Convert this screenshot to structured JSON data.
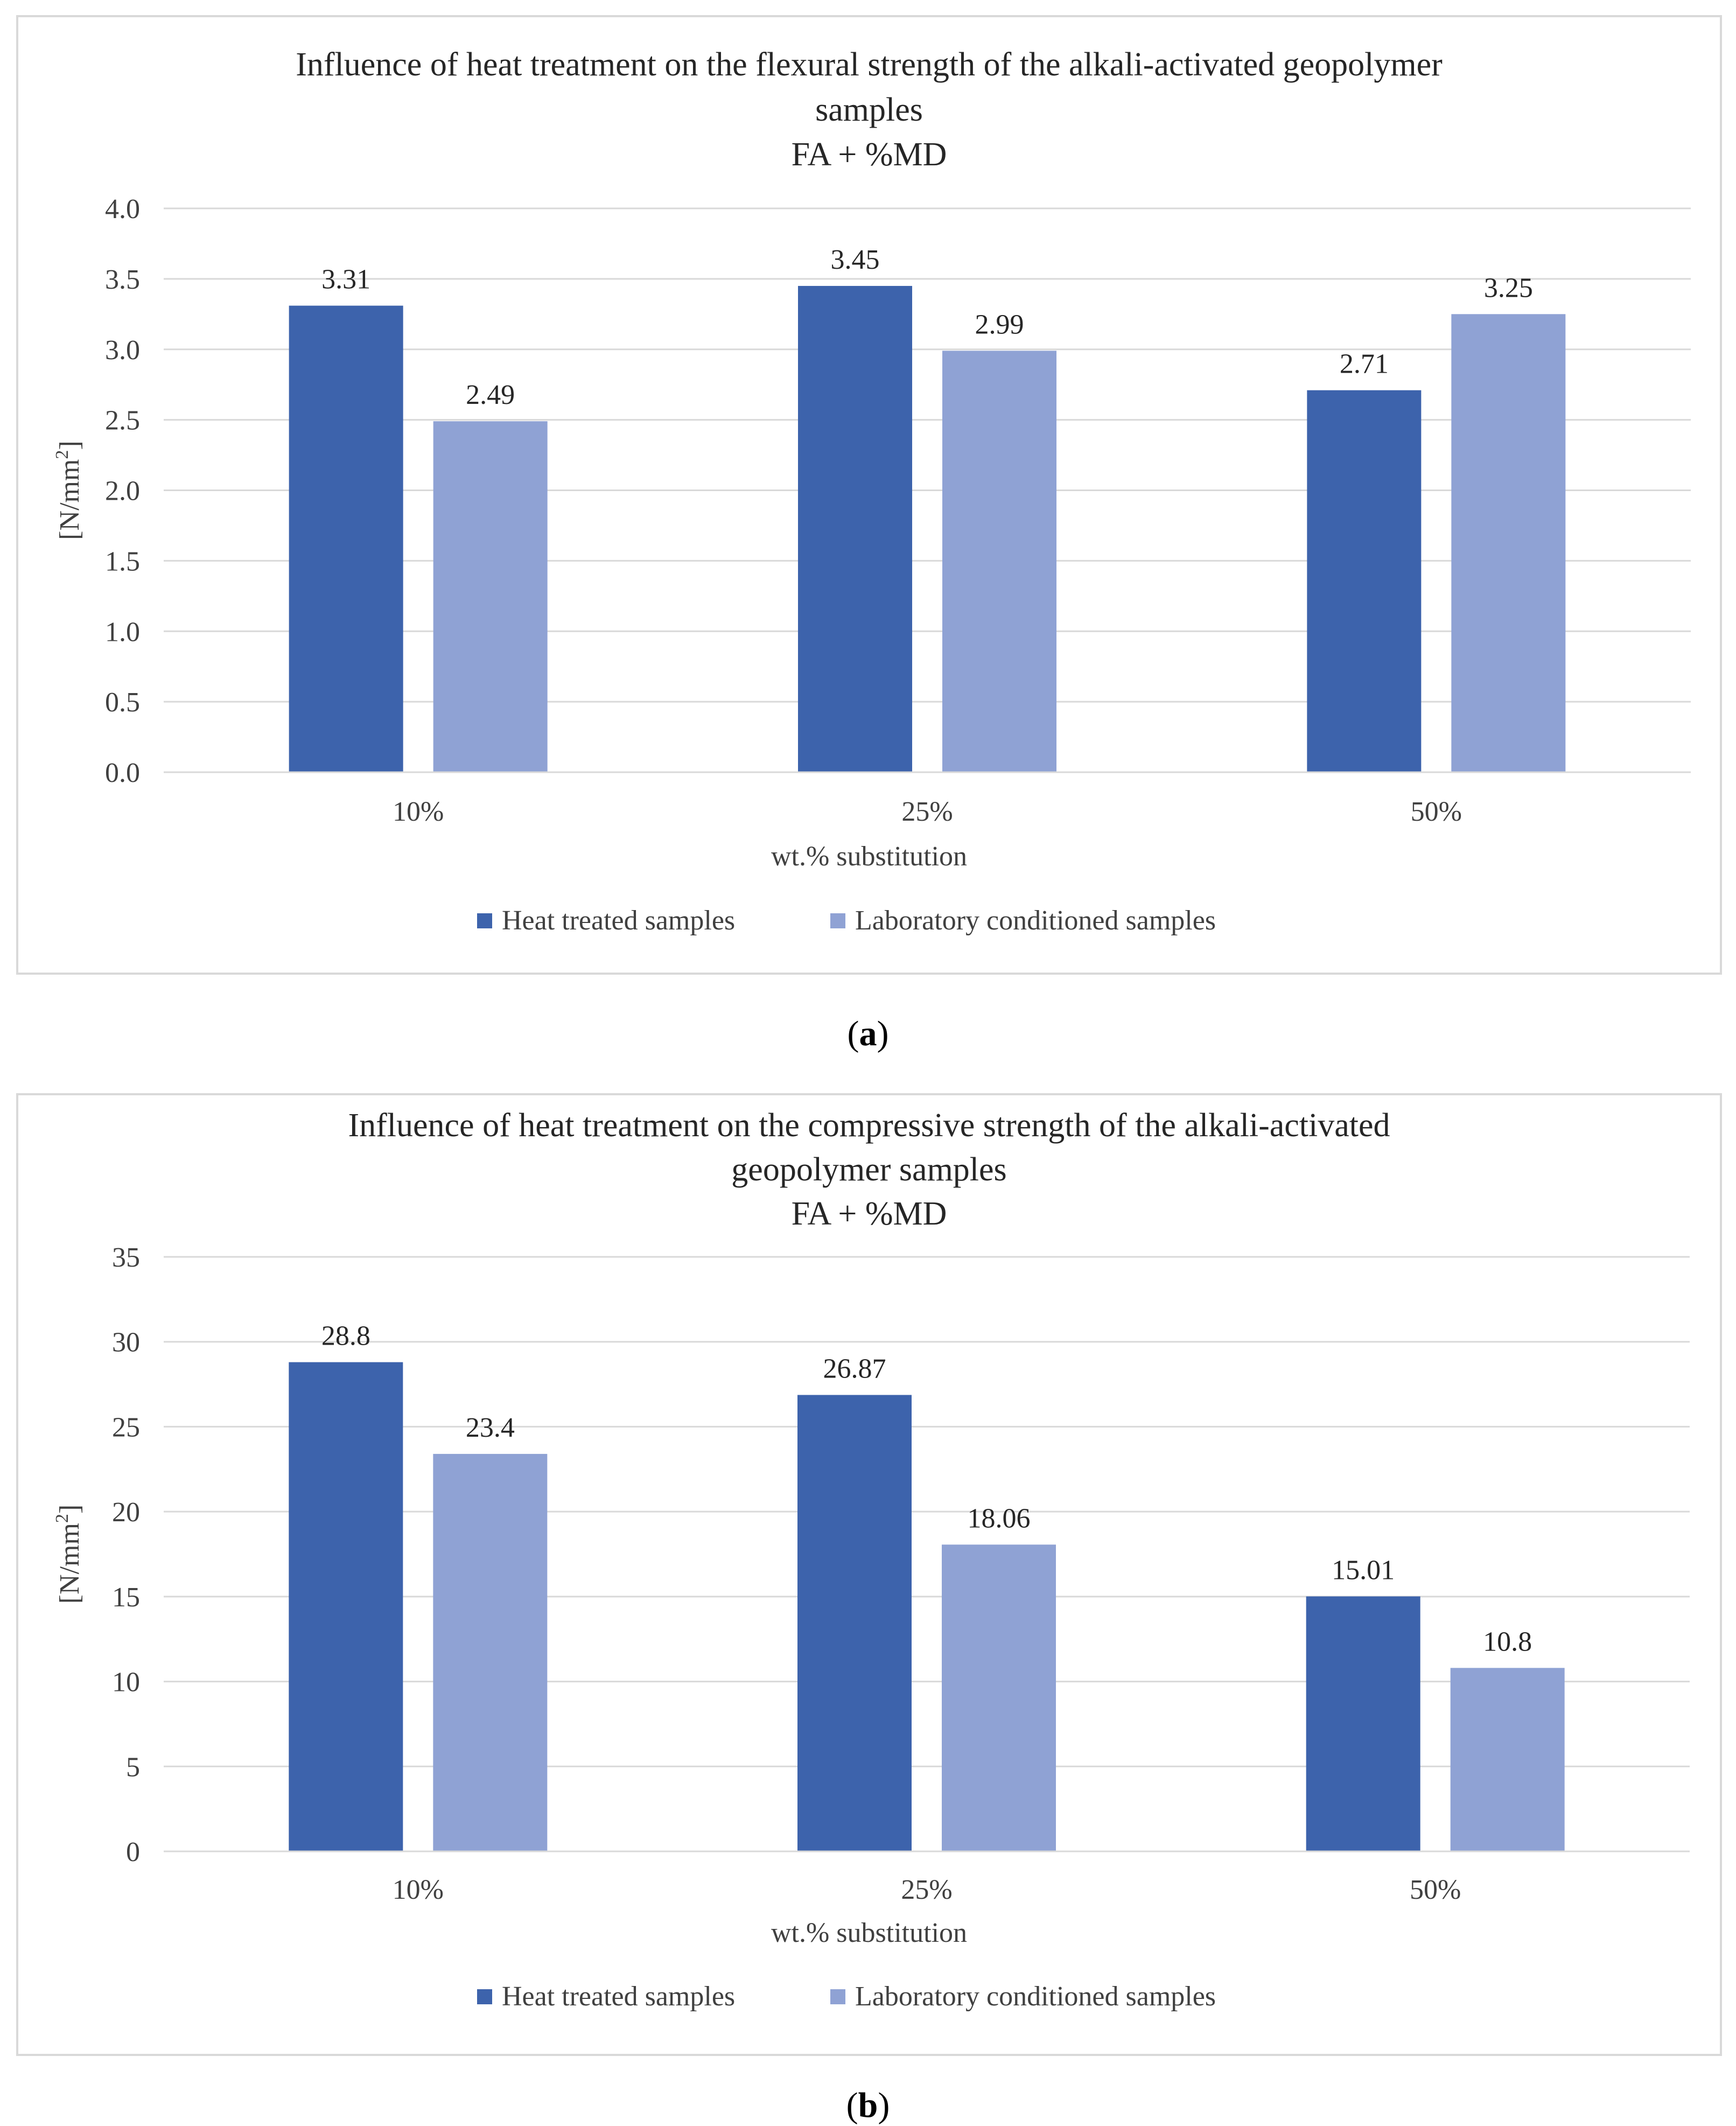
{
  "charts": [
    {
      "caption_letter": "a",
      "chart_data": {
        "type": "bar",
        "title_lines": [
          "Influence of heat treatment on the flexural strength of the alkali-activated geopolymer",
          "samples",
          "FA + %MD"
        ],
        "xlabel": "wt.% substitution",
        "ylabel_main": "[N/mm",
        "ylabel_sup": "2",
        "ylabel_end": "]",
        "ylim": [
          0,
          4.0
        ],
        "yticks": [
          "0.0",
          "0.5",
          "1.0",
          "1.5",
          "2.0",
          "2.5",
          "3.0",
          "3.5",
          "4.0"
        ],
        "ytick_values": [
          0,
          0.5,
          1.0,
          1.5,
          2.0,
          2.5,
          3.0,
          3.5,
          4.0
        ],
        "categories": [
          "10%",
          "25%",
          "50%"
        ],
        "series": [
          {
            "name": "Heat treated samples",
            "color": "#3d63ac",
            "values": [
              3.31,
              3.45,
              2.71
            ],
            "labels": [
              "3.31",
              "3.45",
              "2.71"
            ]
          },
          {
            "name": "Laboratory conditioned samples",
            "color": "#8fa2d4",
            "values": [
              2.49,
              2.99,
              3.25
            ],
            "labels": [
              "2.49",
              "2.99",
              "3.25"
            ]
          }
        ],
        "grid": true,
        "legend": "bottom"
      }
    },
    {
      "caption_letter": "b",
      "chart_data": {
        "type": "bar",
        "title_lines": [
          "Influence of heat treatment on the compressive strength of the alkali-activated",
          "geopolymer samples",
          "FA + %MD"
        ],
        "xlabel": "wt.% substitution",
        "ylabel_main": "[N/mm",
        "ylabel_sup": "2",
        "ylabel_end": "]",
        "ylim": [
          0,
          35
        ],
        "yticks": [
          "0",
          "5",
          "10",
          "15",
          "20",
          "25",
          "30",
          "35"
        ],
        "ytick_values": [
          0,
          5,
          10,
          15,
          20,
          25,
          30,
          35
        ],
        "categories": [
          "10%",
          "25%",
          "50%"
        ],
        "series": [
          {
            "name": "Heat treated samples",
            "color": "#3d63ac",
            "values": [
              28.8,
              26.87,
              15.01
            ],
            "labels": [
              "28.8",
              "26.87",
              "15.01"
            ]
          },
          {
            "name": "Laboratory conditioned samples",
            "color": "#8fa2d4",
            "values": [
              23.4,
              18.06,
              10.8
            ],
            "labels": [
              "23.4",
              "18.06",
              "10.8"
            ]
          }
        ],
        "grid": true,
        "legend": "bottom"
      }
    }
  ]
}
